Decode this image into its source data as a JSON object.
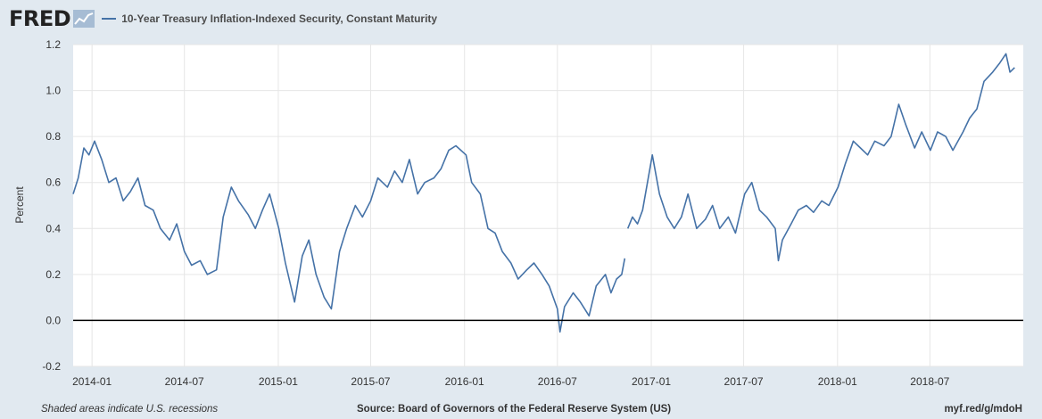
{
  "header": {
    "logo_text": "FRED",
    "series_label": "10-Year Treasury Inflation-Indexed Security, Constant Maturity"
  },
  "footer": {
    "recession_note": "Shaded areas indicate U.S. recessions",
    "source": "Source: Board of Governors of the Federal Reserve System (US)",
    "short_url": "myf.red/g/mdoH"
  },
  "colors": {
    "series": "#4572a7",
    "background": "#e1e9f0",
    "plot": "#ffffff",
    "zero_line": "#000000"
  },
  "chart_data": {
    "type": "line",
    "title": "",
    "xlabel": "",
    "ylabel": "Percent",
    "ylim": [
      -0.2,
      1.2
    ],
    "yticks": [
      -0.2,
      0.0,
      0.2,
      0.4,
      0.6,
      0.8,
      1.0,
      1.2
    ],
    "ytick_labels": [
      "-0.2",
      "0.0",
      "0.2",
      "0.4",
      "0.6",
      "0.8",
      "1.0",
      "1.2"
    ],
    "xlim": [
      "2013-11-25",
      "2018-12-31"
    ],
    "xticks": [
      "2014-01-01",
      "2014-07-01",
      "2015-01-01",
      "2015-07-01",
      "2016-01-01",
      "2016-07-01",
      "2017-01-01",
      "2017-07-01",
      "2018-01-01",
      "2018-07-01"
    ],
    "xtick_labels": [
      "2014-01",
      "2014-07",
      "2015-01",
      "2015-07",
      "2016-01",
      "2016-07",
      "2017-01",
      "2017-07",
      "2018-01",
      "2018-07"
    ],
    "grid": true,
    "legend": "top-left",
    "series": [
      {
        "name": "10-Year Treasury Inflation-Indexed Security, Constant Maturity",
        "segments": [
          {
            "x": [
              "2013-11-25",
              "2013-12-05",
              "2013-12-16",
              "2013-12-26",
              "2014-01-06",
              "2014-01-20",
              "2014-02-03",
              "2014-02-17",
              "2014-03-03",
              "2014-03-17",
              "2014-04-01",
              "2014-04-15",
              "2014-05-01",
              "2014-05-15",
              "2014-06-02",
              "2014-06-16",
              "2014-07-01",
              "2014-07-15",
              "2014-08-01",
              "2014-08-15",
              "2014-09-02",
              "2014-09-15",
              "2014-10-01",
              "2014-10-15",
              "2014-11-03",
              "2014-11-17",
              "2014-12-01",
              "2014-12-15",
              "2015-01-02",
              "2015-01-15",
              "2015-02-02",
              "2015-02-17",
              "2015-03-02",
              "2015-03-16",
              "2015-04-01",
              "2015-04-15",
              "2015-05-01",
              "2015-05-15",
              "2015-06-01",
              "2015-06-15",
              "2015-07-01",
              "2015-07-15",
              "2015-08-03",
              "2015-08-17",
              "2015-09-01",
              "2015-09-15",
              "2015-10-01",
              "2015-10-15",
              "2015-11-02",
              "2015-11-16",
              "2015-12-01",
              "2015-12-15",
              "2016-01-04",
              "2016-01-15",
              "2016-02-01",
              "2016-02-16",
              "2016-03-01",
              "2016-03-15",
              "2016-04-01",
              "2016-04-15",
              "2016-05-02",
              "2016-05-16",
              "2016-06-01",
              "2016-06-15",
              "2016-07-01",
              "2016-07-06",
              "2016-07-15",
              "2016-08-01",
              "2016-08-15",
              "2016-09-01",
              "2016-09-15",
              "2016-10-03",
              "2016-10-14",
              "2016-10-25",
              "2016-11-04",
              "2016-11-10"
            ],
            "y": [
              0.55,
              0.62,
              0.75,
              0.72,
              0.78,
              0.7,
              0.6,
              0.62,
              0.52,
              0.56,
              0.62,
              0.5,
              0.48,
              0.4,
              0.35,
              0.42,
              0.3,
              0.24,
              0.26,
              0.2,
              0.22,
              0.45,
              0.58,
              0.52,
              0.46,
              0.4,
              0.48,
              0.55,
              0.4,
              0.25,
              0.08,
              0.28,
              0.35,
              0.2,
              0.1,
              0.05,
              0.3,
              0.4,
              0.5,
              0.45,
              0.52,
              0.62,
              0.58,
              0.65,
              0.6,
              0.7,
              0.55,
              0.6,
              0.62,
              0.66,
              0.74,
              0.76,
              0.72,
              0.6,
              0.55,
              0.4,
              0.38,
              0.3,
              0.25,
              0.18,
              0.22,
              0.25,
              0.2,
              0.15,
              0.05,
              -0.05,
              0.06,
              0.12,
              0.08,
              0.02,
              0.15,
              0.2,
              0.12,
              0.18,
              0.2,
              0.27
            ]
          },
          {
            "x": [
              "2016-11-16",
              "2016-11-25",
              "2016-12-05",
              "2016-12-15",
              "2017-01-03",
              "2017-01-17",
              "2017-02-01",
              "2017-02-15",
              "2017-03-01",
              "2017-03-14",
              "2017-03-31",
              "2017-04-17",
              "2017-05-01",
              "2017-05-15",
              "2017-06-01",
              "2017-06-15",
              "2017-07-03",
              "2017-07-17",
              "2017-08-01",
              "2017-08-15",
              "2017-09-01",
              "2017-09-07",
              "2017-09-15",
              "2017-10-02",
              "2017-10-16",
              "2017-11-01",
              "2017-11-15",
              "2017-12-01",
              "2017-12-15",
              "2018-01-02",
              "2018-01-16",
              "2018-02-01",
              "2018-02-15",
              "2018-03-01",
              "2018-03-15",
              "2018-04-02",
              "2018-04-16",
              "2018-05-01",
              "2018-05-15",
              "2018-06-01",
              "2018-06-15",
              "2018-07-02",
              "2018-07-16",
              "2018-08-01",
              "2018-08-15",
              "2018-09-04",
              "2018-09-17",
              "2018-10-01",
              "2018-10-15",
              "2018-11-01",
              "2018-11-15",
              "2018-11-27",
              "2018-12-05",
              "2018-12-14"
            ],
            "y": [
              0.4,
              0.45,
              0.42,
              0.48,
              0.72,
              0.55,
              0.45,
              0.4,
              0.45,
              0.55,
              0.4,
              0.44,
              0.5,
              0.4,
              0.45,
              0.38,
              0.55,
              0.6,
              0.48,
              0.45,
              0.4,
              0.26,
              0.35,
              0.42,
              0.48,
              0.5,
              0.47,
              0.52,
              0.5,
              0.58,
              0.68,
              0.78,
              0.75,
              0.72,
              0.78,
              0.76,
              0.8,
              0.94,
              0.85,
              0.75,
              0.82,
              0.74,
              0.82,
              0.8,
              0.74,
              0.82,
              0.88,
              0.92,
              1.04,
              1.08,
              1.12,
              1.16,
              1.08,
              1.1
            ]
          }
        ]
      }
    ]
  }
}
